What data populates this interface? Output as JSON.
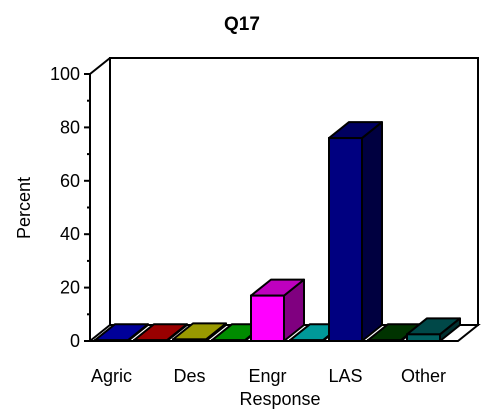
{
  "chart_data": {
    "type": "bar",
    "title": "Q17",
    "xlabel": "Response",
    "ylabel": "Percent",
    "ylim": [
      0,
      100
    ],
    "yticks": [
      "0",
      "20",
      "40",
      "60",
      "80",
      "100"
    ],
    "xticklabels": [
      "Agric",
      "Des",
      "Engr",
      "LAS",
      "Other"
    ],
    "categories": [
      "Agric",
      "",
      "Des",
      "",
      "Engr",
      "",
      "LAS",
      "",
      "Other"
    ],
    "values": [
      0.3,
      0.3,
      0.6,
      0.3,
      17,
      0.3,
      76,
      0.3,
      2.5
    ],
    "colors": [
      "#0000cc",
      "#cc0000",
      "#cccc00",
      "#00bb00",
      "#ff00ff",
      "#00cccc",
      "#000080",
      "#004400",
      "#006060"
    ],
    "grid": false,
    "legend": "none",
    "style": "3d"
  }
}
